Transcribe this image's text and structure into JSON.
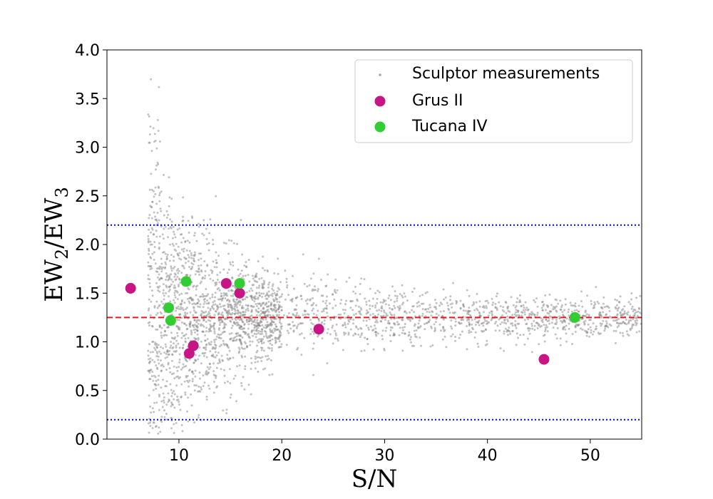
{
  "chart_data": {
    "type": "scatter",
    "xlabel": "S/N",
    "ylabel": {
      "base": "EW",
      "sub1": "2",
      "sep": "/EW",
      "sub2": "3"
    },
    "xlim": [
      3,
      55
    ],
    "ylim": [
      0.0,
      4.0
    ],
    "x_ticks": [
      10,
      20,
      30,
      40,
      50
    ],
    "y_ticks": [
      0.0,
      0.5,
      1.0,
      1.5,
      2.0,
      2.5,
      3.0,
      3.5,
      4.0
    ],
    "x_tick_labels": [
      "10",
      "20",
      "30",
      "40",
      "50"
    ],
    "y_tick_labels": [
      "0.0",
      "0.5",
      "1.0",
      "1.5",
      "2.0",
      "2.5",
      "3.0",
      "3.5",
      "4.0"
    ],
    "grid": false,
    "legend_position": "top-right",
    "reference_lines": [
      {
        "y": 1.25,
        "style": "dashed",
        "color": "#e41a1c"
      },
      {
        "y": 2.2,
        "style": "dotted",
        "color": "#0000ff"
      },
      {
        "y": 0.2,
        "style": "dotted",
        "color": "#0000ff"
      }
    ],
    "series": [
      {
        "name": "Sculptor measurements",
        "color": "#888888",
        "marker": "small-dot",
        "center": 1.25,
        "x_range": [
          7.0,
          55
        ],
        "approx_count": 3000
      },
      {
        "name": "Grus II",
        "color": "#c71585",
        "marker": "circle",
        "points": [
          {
            "x": 5.3,
            "y": 1.55
          },
          {
            "x": 11.0,
            "y": 0.88
          },
          {
            "x": 11.4,
            "y": 0.96
          },
          {
            "x": 14.6,
            "y": 1.6
          },
          {
            "x": 15.9,
            "y": 1.5
          },
          {
            "x": 23.6,
            "y": 1.13
          },
          {
            "x": 45.5,
            "y": 0.82
          }
        ]
      },
      {
        "name": "Tucana IV",
        "color": "#32cd32",
        "marker": "circle",
        "points": [
          {
            "x": 9.0,
            "y": 1.35
          },
          {
            "x": 9.2,
            "y": 1.22
          },
          {
            "x": 10.7,
            "y": 1.62
          },
          {
            "x": 15.9,
            "y": 1.6
          },
          {
            "x": 48.5,
            "y": 1.25
          }
        ]
      }
    ]
  }
}
